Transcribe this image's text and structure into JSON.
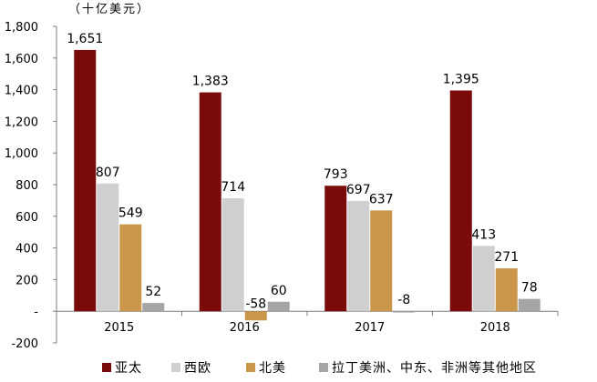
{
  "chart_data": {
    "type": "bar",
    "unit_label": "（十亿美元）",
    "categories": [
      "2015",
      "2016",
      "2017",
      "2018"
    ],
    "series": [
      {
        "name": "亚太",
        "color": "#7B0A0A",
        "values": [
          1651,
          1383,
          793,
          1395
        ],
        "labels": [
          "1,651",
          "1,383",
          "793",
          "1,395"
        ]
      },
      {
        "name": "西欧",
        "color": "#CFCFCF",
        "values": [
          807,
          714,
          697,
          413
        ],
        "labels": [
          "807",
          "714",
          "697",
          "413"
        ]
      },
      {
        "name": "北美",
        "color": "#C9964A",
        "values": [
          549,
          -58,
          637,
          271
        ],
        "labels": [
          "549",
          "-58",
          "637",
          "271"
        ]
      },
      {
        "name": "拉丁美洲、中东、非洲等其他地区",
        "color": "#A5A5A5",
        "values": [
          52,
          60,
          -8,
          78
        ],
        "labels": [
          "52",
          "60",
          "-8",
          "78"
        ]
      }
    ],
    "y_ticks": [
      -200,
      0,
      200,
      400,
      600,
      800,
      1000,
      1200,
      1400,
      1600,
      1800
    ],
    "y_tick_labels": [
      "-200",
      "-",
      "200",
      "400",
      "600",
      "800",
      "1,000",
      "1,200",
      "1,400",
      "1,600",
      "1,800"
    ],
    "ylim": [
      -200,
      1800
    ],
    "grid": false,
    "legend_position": "bottom"
  }
}
